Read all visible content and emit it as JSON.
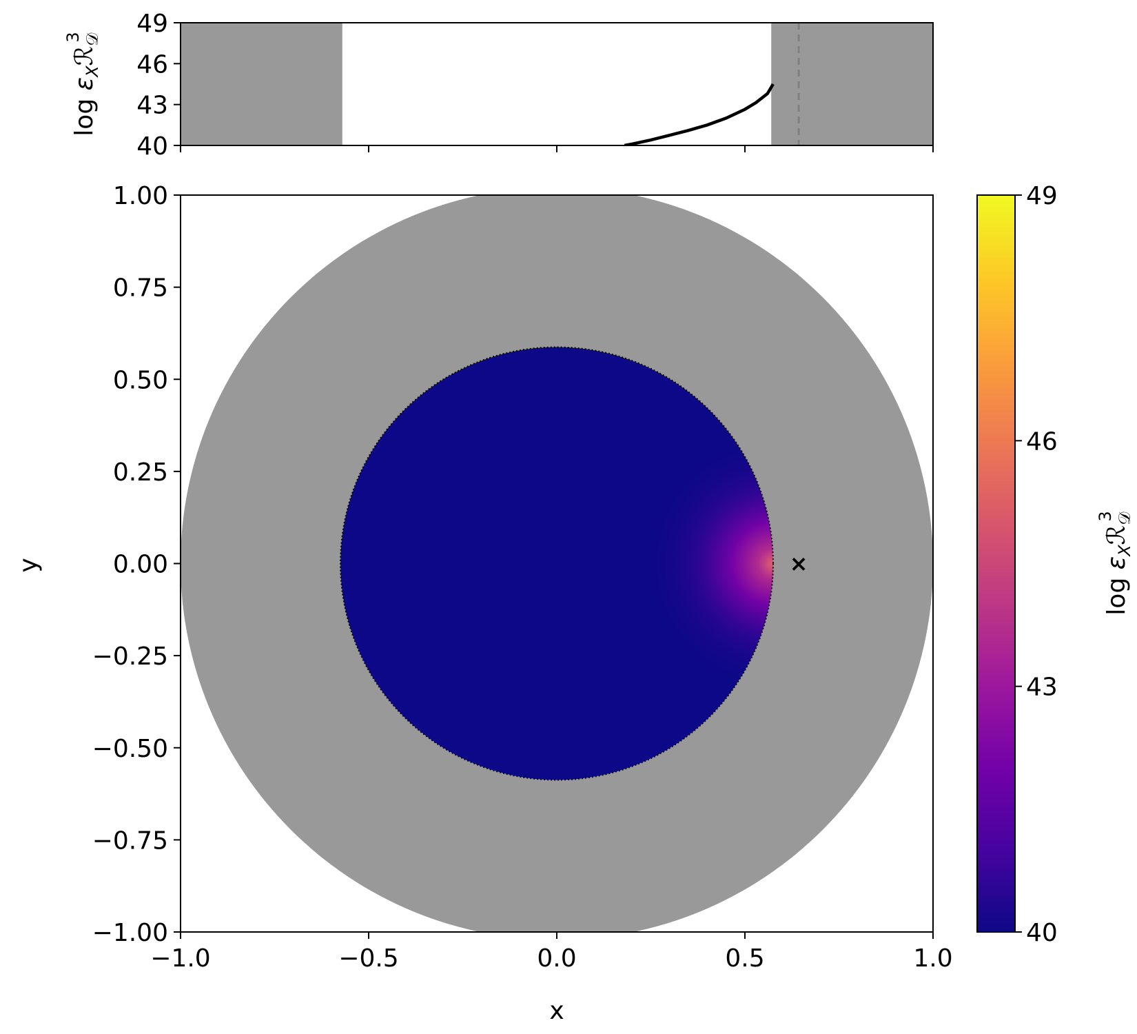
{
  "chart_data": [
    {
      "type": "line",
      "panel": "top",
      "xlim": [
        -1.0,
        1.0
      ],
      "ylim": [
        40,
        49
      ],
      "yticks": [
        40,
        43,
        46,
        49
      ],
      "ylabel": "log ε_X R_D^3",
      "ylabel_parts": {
        "prefix": "log ",
        "eps": "ε",
        "eps_sub": "X",
        "R": "ℛ",
        "R_sub": "𝒟",
        "R_sup": "3"
      },
      "shaded_regions": [
        [
          -1.0,
          -0.57
        ],
        [
          0.57,
          1.0
        ]
      ],
      "shade_color": "#999999",
      "dashed_vline_x": 0.643,
      "series": [
        {
          "x": [
            0.18,
            0.2,
            0.25,
            0.3,
            0.35,
            0.4,
            0.45,
            0.5,
            0.53,
            0.56,
            0.575
          ],
          "y": [
            40.0,
            40.1,
            40.4,
            40.75,
            41.1,
            41.5,
            42.0,
            42.65,
            43.15,
            43.8,
            44.5
          ],
          "color": "#000000"
        }
      ]
    },
    {
      "type": "heatmap",
      "panel": "main",
      "xlabel": "x",
      "ylabel": "y",
      "xlim": [
        -1.0,
        1.0
      ],
      "ylim": [
        -1.0,
        1.0
      ],
      "xticks": [
        "−1.0",
        "−0.5",
        "0.0",
        "0.5",
        "1.0"
      ],
      "xtick_values": [
        -1.0,
        -0.5,
        0.0,
        0.5,
        1.0
      ],
      "yticks": [
        "−1.00",
        "−0.75",
        "−0.50",
        "−0.25",
        "0.00",
        "0.25",
        "0.50",
        "0.75",
        "1.00"
      ],
      "ytick_values": [
        -1.0,
        -0.75,
        -0.5,
        -0.25,
        0.0,
        0.25,
        0.5,
        0.75,
        1.0
      ],
      "outer_disk_radius": 1.0,
      "inner_disk_radius": 0.575,
      "outer_disk_color": "#999999",
      "base_color": "#0d0887",
      "hotspot": {
        "x": 0.575,
        "y": 0.0,
        "peak_value": 44.5
      },
      "marker": {
        "x": 0.643,
        "y": 0.0,
        "symbol": "×",
        "color": "#ffffff"
      },
      "colorbar": {
        "range": [
          40,
          49
        ],
        "ticks": [
          40,
          43,
          46,
          49
        ],
        "label": "log ε_X R_D^3",
        "colormap": "plasma",
        "stops": [
          "#0d0887",
          "#46039f",
          "#7201a8",
          "#9c179e",
          "#bd3786",
          "#d8576b",
          "#ed7953",
          "#fb9f3a",
          "#fdca26",
          "#f0f921"
        ]
      }
    }
  ]
}
